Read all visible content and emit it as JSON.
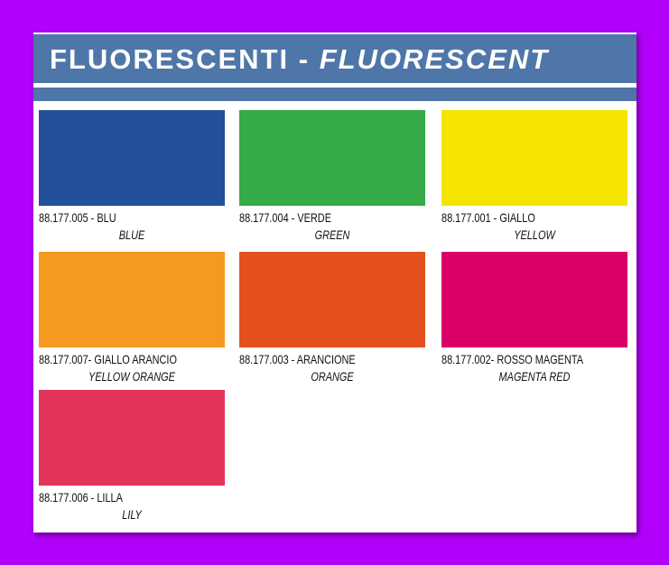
{
  "header": {
    "title_main": "FLUORESCENTI -",
    "title_translation": "FLUORESCENT"
  },
  "swatches": [
    {
      "code": "88.177.005 - BLU",
      "name": "BLUE",
      "color": "#244f9b"
    },
    {
      "code": "88.177.004 - VERDE",
      "name": "GREEN",
      "color": "#37aa4a"
    },
    {
      "code": "88.177.001 - GIALLO",
      "name": "YELLOW",
      "color": "#f5e500"
    },
    {
      "code": "88.177.007- GIALLO ARANCIO",
      "name": "YELLOW ORANGE",
      "color": "#f39a1f"
    },
    {
      "code": "88.177.003 - ARANCIONE",
      "name": "ORANGE",
      "color": "#e4511f"
    },
    {
      "code": "88.177.002- ROSSO MAGENTA",
      "name": "MAGENTA RED",
      "color": "#db0068"
    },
    {
      "code": "88.177.006 - LILLA",
      "name": "LILY",
      "color": "#e2345a"
    }
  ]
}
